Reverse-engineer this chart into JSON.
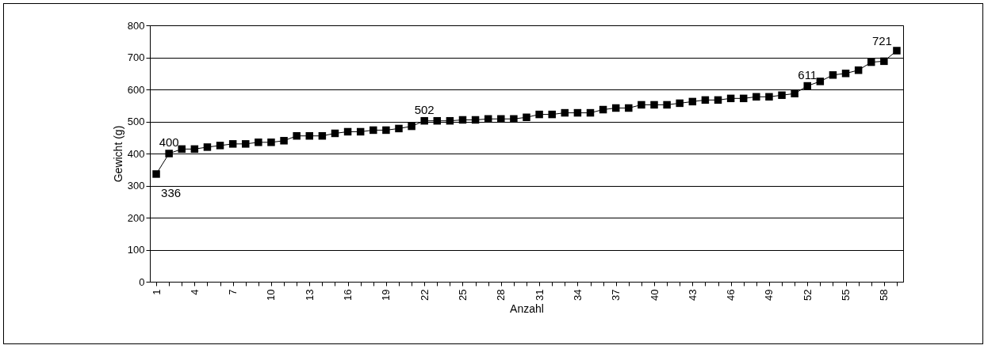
{
  "chart_data": {
    "type": "line",
    "xlabel": "Anzahl",
    "ylabel": "Gewicht (g)",
    "categories": [
      "1",
      null,
      null,
      "4",
      null,
      null,
      "7",
      null,
      null,
      "10",
      null,
      null,
      "13",
      null,
      null,
      "16",
      null,
      null,
      "19",
      null,
      null,
      "22",
      null,
      null,
      "25",
      null,
      null,
      "28",
      null,
      null,
      "31",
      null,
      null,
      "34",
      null,
      null,
      "37",
      null,
      null,
      "40",
      null,
      null,
      "43",
      null,
      null,
      "46",
      null,
      null,
      "49",
      null,
      null,
      "52",
      null,
      null,
      "55",
      null,
      null,
      "58",
      null
    ],
    "series": [
      {
        "color": "#000000",
        "values": [
          336,
          400,
          414,
          414,
          420,
          425,
          430,
          430,
          435,
          435,
          440,
          455,
          455,
          455,
          463,
          468,
          468,
          473,
          473,
          478,
          485,
          502,
          502,
          502,
          505,
          505,
          508,
          508,
          508,
          513,
          522,
          522,
          527,
          527,
          527,
          537,
          542,
          542,
          552,
          552,
          552,
          557,
          562,
          567,
          567,
          572,
          572,
          577,
          577,
          582,
          587,
          611,
          625,
          645,
          650,
          660,
          685,
          688,
          721
        ],
        "value_labels": [
          "336",
          "400",
          null,
          null,
          null,
          null,
          null,
          null,
          null,
          null,
          null,
          null,
          null,
          null,
          null,
          null,
          null,
          null,
          null,
          null,
          null,
          "502",
          null,
          null,
          null,
          null,
          null,
          null,
          null,
          null,
          null,
          null,
          null,
          null,
          null,
          null,
          null,
          null,
          null,
          null,
          null,
          null,
          null,
          null,
          null,
          null,
          null,
          null,
          null,
          null,
          null,
          "611",
          null,
          null,
          null,
          null,
          null,
          null,
          "721"
        ]
      }
    ],
    "ylim": [
      0,
      800
    ],
    "yticks": [
      0,
      100,
      200,
      300,
      400,
      500,
      600,
      700,
      800
    ],
    "grid": "y",
    "marker": "square",
    "line_style": "solid"
  }
}
